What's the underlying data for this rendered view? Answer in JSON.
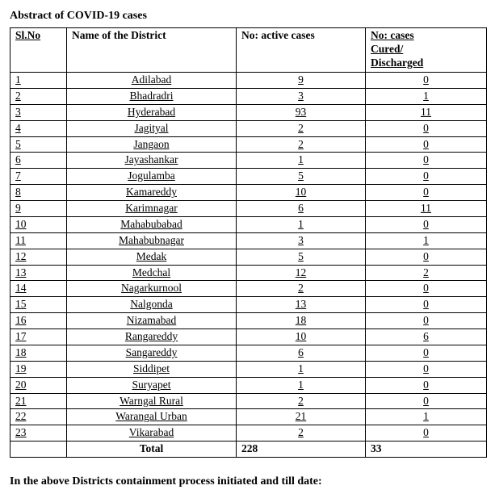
{
  "title": "Abstract of COVID-19 cases",
  "table": {
    "headers": {
      "slno": "Sl.No",
      "name": "Name of the District",
      "active": "No: active cases",
      "cured_l1": "No: cases",
      "cured_l2": "Cured/",
      "cured_l3": "Discharged"
    },
    "rows": [
      {
        "slno": "1",
        "name": "Adilabad",
        "active": "9",
        "cured": "0"
      },
      {
        "slno": "2",
        "name": "Bhadradri",
        "active": "3",
        "cured": "1"
      },
      {
        "slno": "3",
        "name": "Hyderabad",
        "active": "93",
        "cured": "11"
      },
      {
        "slno": "4",
        "name": "Jagityal",
        "active": "2",
        "cured": "0"
      },
      {
        "slno": "5",
        "name": "Jangaon",
        "active": "2",
        "cured": "0"
      },
      {
        "slno": "6",
        "name": "Jayashankar",
        "active": "1",
        "cured": "0"
      },
      {
        "slno": "7",
        "name": "Jogulamba",
        "active": "5",
        "cured": "0"
      },
      {
        "slno": "8",
        "name": "Kamareddy",
        "active": "10",
        "cured": "0"
      },
      {
        "slno": "9",
        "name": "Karimnagar",
        "active": "6",
        "cured": "11"
      },
      {
        "slno": "10",
        "name": "Mahabubabad",
        "active": "1",
        "cured": "0"
      },
      {
        "slno": "11",
        "name": "Mahabubnagar",
        "active": "3",
        "cured": "1"
      },
      {
        "slno": "12",
        "name": "Medak",
        "active": "5",
        "cured": "0"
      },
      {
        "slno": "13",
        "name": "Medchal",
        "active": "12",
        "cured": "2"
      },
      {
        "slno": "14",
        "name": "Nagarkurnool",
        "active": "2",
        "cured": "0"
      },
      {
        "slno": "15",
        "name": "Nalgonda",
        "active": "13",
        "cured": "0"
      },
      {
        "slno": "16",
        "name": "Nizamabad",
        "active": "18",
        "cured": "0"
      },
      {
        "slno": "17",
        "name": "Rangareddy",
        "active": "10",
        "cured": "6"
      },
      {
        "slno": "18",
        "name": "Sangareddy",
        "active": "6",
        "cured": "0"
      },
      {
        "slno": "19",
        "name": "Siddipet",
        "active": "1",
        "cured": "0"
      },
      {
        "slno": "20",
        "name": "Suryapet",
        "active": "1",
        "cured": "0"
      },
      {
        "slno": "21",
        "name": "Warngal Rural",
        "active": "2",
        "cured": "0"
      },
      {
        "slno": "22",
        "name": "Warangal Urban",
        "active": "21",
        "cured": "1"
      },
      {
        "slno": "23",
        "name": "Vikarabad",
        "active": "2",
        "cured": "0"
      }
    ],
    "footer": {
      "label": "Total",
      "active": "228",
      "cured": "33"
    }
  },
  "note": "In the above Districts containment process initiated and till date:"
}
